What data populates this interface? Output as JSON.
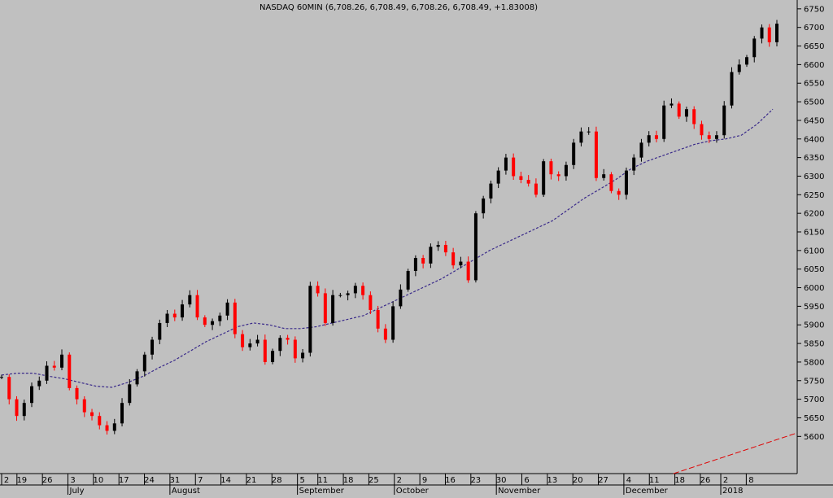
{
  "chart_data": {
    "type": "line",
    "title": "NASDAQ 60MIN (6,708.26, 6,708.49, 6,708.26, 6,708.49, +1.83008)",
    "xlabel": "",
    "ylabel": "",
    "ylim": [
      5500,
      6765
    ],
    "grid": false,
    "legend": "none",
    "y_ticks": [
      5600,
      5650,
      5700,
      5750,
      5800,
      5850,
      5900,
      5950,
      6000,
      6050,
      6100,
      6150,
      6200,
      6250,
      6300,
      6350,
      6400,
      6450,
      6500,
      6550,
      6600,
      6650,
      6700,
      6750
    ],
    "x_day_ticks": [
      "2",
      "19",
      "26",
      "3",
      "10",
      "17",
      "24",
      "31",
      "7",
      "14",
      "21",
      "28",
      "5",
      "11",
      "18",
      "25",
      "2",
      "9",
      "16",
      "23",
      "30",
      "6",
      "13",
      "20",
      "27",
      "4",
      "11",
      "18",
      "26",
      "2",
      "8"
    ],
    "x_day_index": [
      0,
      3,
      8,
      13,
      18,
      23,
      28,
      33,
      38,
      43,
      48,
      53,
      58,
      62,
      67,
      72,
      77,
      82,
      87,
      92,
      97,
      102,
      107,
      112,
      117,
      122,
      127,
      132,
      137,
      141,
      146
    ],
    "x_month_labels": [
      "July",
      "August",
      "September",
      "October",
      "November",
      "December",
      "2018"
    ],
    "x_month_index": [
      13,
      33,
      58,
      77,
      97,
      122,
      141
    ],
    "x_total_sessions": 152,
    "series": [
      {
        "type": "candlestick",
        "up_color": "#000000",
        "down_color": "#ff0000",
        "close": [
          5760,
          5700,
          5655,
          5690,
          5735,
          5750,
          5790,
          5785,
          5820,
          5730,
          5700,
          5665,
          5655,
          5630,
          5615,
          5635,
          5690,
          5740,
          5775,
          5820,
          5860,
          5905,
          5930,
          5920,
          5955,
          5980,
          5920,
          5900,
          5910,
          5925,
          5960,
          5875,
          5840,
          5850,
          5860,
          5800,
          5830,
          5865,
          5860,
          5810,
          5825,
          6005,
          5985,
          5905,
          5980,
          5980,
          5985,
          6005,
          5980,
          5940,
          5890,
          5860,
          5950,
          5995,
          6045,
          6080,
          6065,
          6110,
          6115,
          6095,
          6060,
          6070,
          6020,
          6200,
          6240,
          6280,
          6315,
          6350,
          6300,
          6290,
          6280,
          6250,
          6340,
          6305,
          6300,
          6330,
          6390,
          6420,
          6420,
          6295,
          6305,
          6260,
          6250,
          6315,
          6350,
          6390,
          6410,
          6400,
          6490,
          6495,
          6460,
          6480,
          6440,
          6410,
          6400,
          6410,
          6490,
          6580,
          6600,
          6620,
          6670,
          6700,
          6660,
          6710
        ],
        "moving_average": {
          "style": "dashed",
          "color": "#3a2a8a",
          "values": [
            5765,
            5770,
            5770,
            5762,
            5755,
            5745,
            5735,
            5732,
            5745,
            5762,
            5785,
            5805,
            5830,
            5855,
            5875,
            5895,
            5905,
            5900,
            5890,
            5890,
            5895,
            5905,
            5915,
            5925,
            5945,
            5965,
            5985,
            6005,
            6025,
            6050,
            6075,
            6100,
            6120,
            6140,
            6160,
            6180,
            6210,
            6240,
            6265,
            6290,
            6320,
            6340,
            6355,
            6370,
            6385,
            6395,
            6400,
            6410,
            6440,
            6480
          ]
        }
      }
    ]
  }
}
